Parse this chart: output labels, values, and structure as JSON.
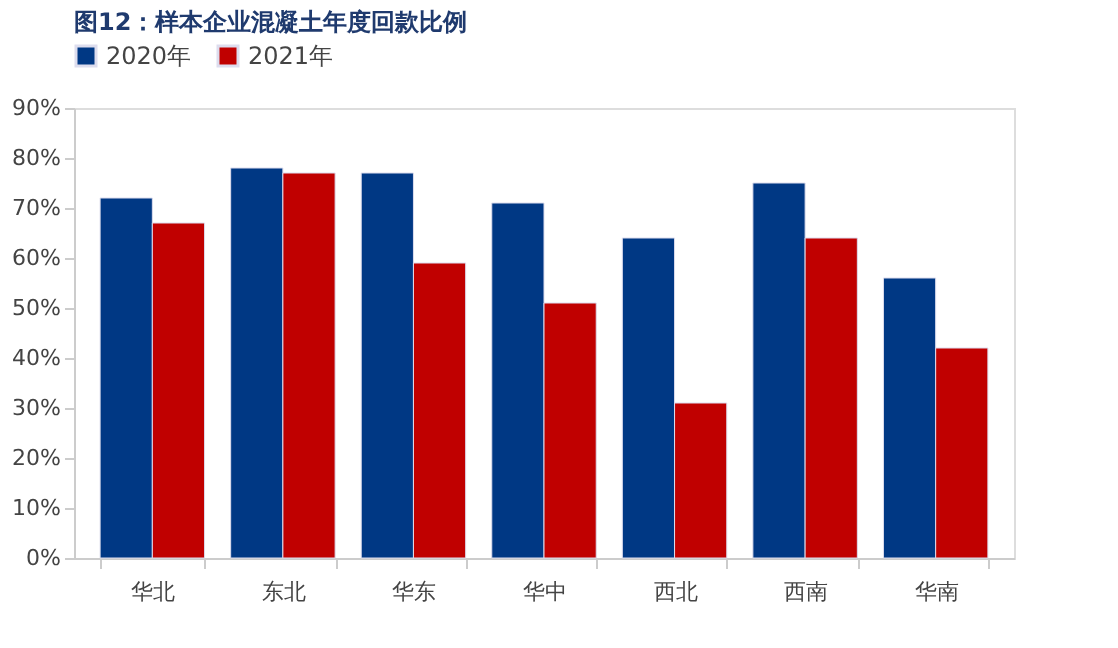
{
  "chart_data": {
    "type": "bar",
    "title": "图12：样本企业混凝土年度回款比例",
    "categories": [
      "华北",
      "东北",
      "华东",
      "华中",
      "西北",
      "西南",
      "华南"
    ],
    "series": [
      {
        "name": "2020年",
        "color": "#003884",
        "values": [
          72,
          78,
          77,
          71,
          64,
          75,
          56
        ]
      },
      {
        "name": "2021年",
        "color": "#c00000",
        "values": [
          67,
          77,
          59,
          51,
          31,
          64,
          42
        ]
      }
    ],
    "ylim": [
      0,
      90
    ],
    "yticks": [
      {
        "value": 0,
        "label": "0%"
      },
      {
        "value": 10,
        "label": "10%"
      },
      {
        "value": 20,
        "label": "20%"
      },
      {
        "value": 30,
        "label": "30%"
      },
      {
        "value": 40,
        "label": "40%"
      },
      {
        "value": 50,
        "label": "50%"
      },
      {
        "value": 60,
        "label": "60%"
      },
      {
        "value": 70,
        "label": "70%"
      },
      {
        "value": 80,
        "label": "80%"
      },
      {
        "value": 90,
        "label": "90%"
      }
    ],
    "grid": false,
    "legend": "top"
  }
}
